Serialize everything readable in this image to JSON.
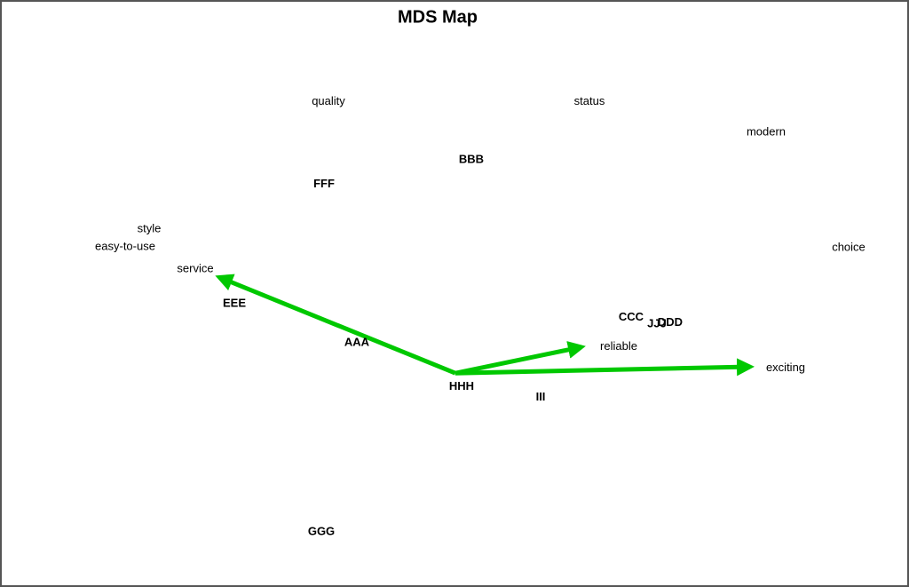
{
  "chart_data": {
    "type": "scatter",
    "title": "MDS Map",
    "xlim": [
      0,
      100
    ],
    "ylim": [
      0,
      100
    ],
    "brands": {
      "labels": [
        "BBB",
        "FFF",
        "EEE",
        "AAA",
        "HHH",
        "III",
        "CCC",
        "JJJ",
        "DDD",
        "GGG"
      ],
      "x": [
        51.9,
        35.3,
        25.2,
        39.0,
        50.8,
        59.7,
        69.9,
        72.8,
        74.3,
        35.0
      ],
      "y": [
        78.3,
        73.7,
        51.3,
        44.0,
        35.7,
        33.7,
        48.7,
        47.5,
        47.7,
        8.5
      ]
    },
    "attributes": {
      "labels": [
        "quality",
        "status",
        "modern",
        "style",
        "easy-to-use",
        "choice",
        "service",
        "reliable",
        "exciting"
      ],
      "x": [
        35.8,
        65.2,
        85.1,
        15.6,
        12.9,
        94.4,
        20.8,
        68.5,
        87.3
      ],
      "y": [
        89.2,
        89.2,
        83.5,
        65.3,
        62.0,
        61.8,
        57.8,
        43.2,
        39.2
      ]
    },
    "vectors": {
      "color": "#00c800",
      "x0": 50.1,
      "y0": 38.3,
      "x": [
        23.5,
        64.3,
        83.3
      ],
      "y": [
        56.3,
        43.2,
        39.5
      ]
    }
  }
}
